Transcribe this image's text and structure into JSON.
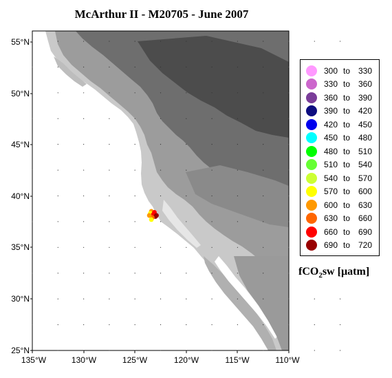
{
  "map": {
    "title": "McArthur II - M20705 - June 2007",
    "lat_ticks": [
      "55°N",
      "50°N",
      "45°N",
      "40°N",
      "35°N",
      "30°N",
      "25°N"
    ],
    "lon_ticks": [
      "135°W",
      "130°W",
      "125°W",
      "120°W",
      "115°W",
      "110°W"
    ],
    "lat_range": [
      25,
      56
    ],
    "lon_range": [
      -135,
      -110
    ],
    "colors": {
      "ocean": "#ffffff",
      "land_low": "#d8d8d8",
      "land_mid": "#9a9a9a",
      "land_high": "#5a5a5a"
    }
  },
  "legend": {
    "entries": [
      {
        "lo": "300",
        "to": "to",
        "hi": "330",
        "color": "#ff99ff"
      },
      {
        "lo": "330",
        "to": "to",
        "hi": "360",
        "color": "#cc66cc"
      },
      {
        "lo": "360",
        "to": "to",
        "hi": "390",
        "color": "#7a3d99"
      },
      {
        "lo": "390",
        "to": "to",
        "hi": "420",
        "color": "#0d0d80"
      },
      {
        "lo": "420",
        "to": "to",
        "hi": "450",
        "color": "#0000ee"
      },
      {
        "lo": "450",
        "to": "to",
        "hi": "480",
        "color": "#00ffff"
      },
      {
        "lo": "480",
        "to": "to",
        "hi": "510",
        "color": "#00ff00"
      },
      {
        "lo": "510",
        "to": "to",
        "hi": "540",
        "color": "#66ff33"
      },
      {
        "lo": "540",
        "to": "to",
        "hi": "570",
        "color": "#ccff33"
      },
      {
        "lo": "570",
        "to": "to",
        "hi": "600",
        "color": "#ffff00"
      },
      {
        "lo": "600",
        "to": "to",
        "hi": "630",
        "color": "#ff9900"
      },
      {
        "lo": "630",
        "to": "to",
        "hi": "660",
        "color": "#ff6600"
      },
      {
        "lo": "660",
        "to": "to",
        "hi": "690",
        "color": "#ff0000"
      },
      {
        "lo": "690",
        "to": "to",
        "hi": "720",
        "color": "#990000"
      }
    ],
    "unit_prefix": "fCO",
    "unit_sub": "2",
    "unit_suffix": "sw [µatm]"
  },
  "cruise_points": [
    {
      "lon": -123.4,
      "lat": 38.5,
      "color": "#ff9900"
    },
    {
      "lon": -123.5,
      "lat": 38.3,
      "color": "#ffff00"
    },
    {
      "lon": -123.2,
      "lat": 38.2,
      "color": "#ff0000"
    },
    {
      "lon": -123.0,
      "lat": 38.0,
      "color": "#990000"
    },
    {
      "lon": -123.3,
      "lat": 37.9,
      "color": "#ff6600"
    },
    {
      "lon": -123.1,
      "lat": 38.4,
      "color": "#ff0000"
    },
    {
      "lon": -122.9,
      "lat": 38.1,
      "color": "#990000"
    },
    {
      "lon": -123.4,
      "lat": 37.7,
      "color": "#ffff00"
    },
    {
      "lon": -123.6,
      "lat": 38.1,
      "color": "#ff9900"
    }
  ]
}
